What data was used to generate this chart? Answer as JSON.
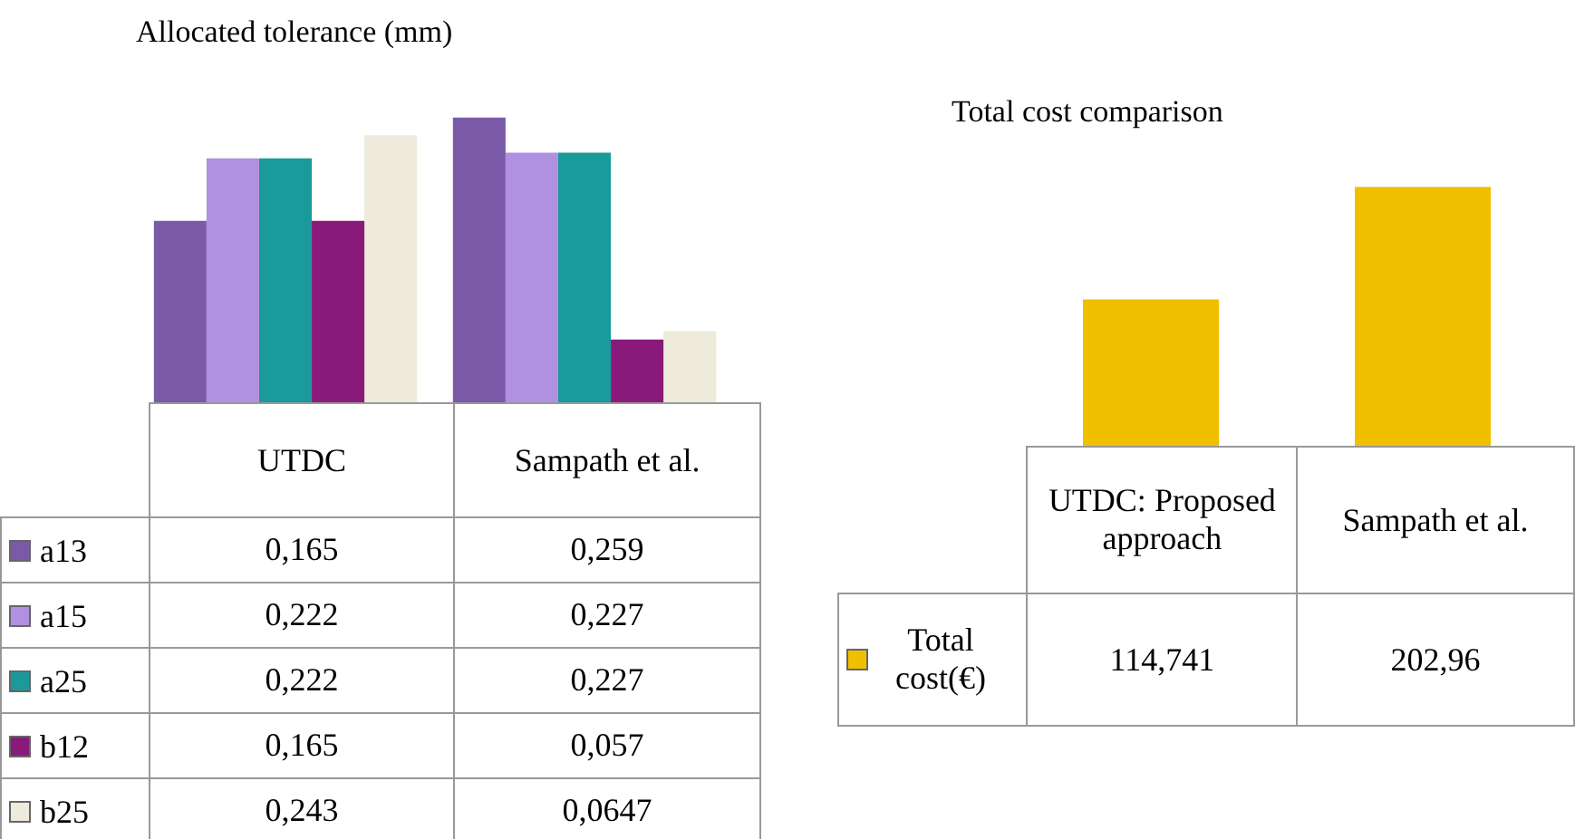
{
  "chart_data": [
    {
      "type": "bar",
      "title": "Allocated tolerance (mm)",
      "categories": [
        "UTDC",
        "Sampath et al."
      ],
      "legend": "bottom",
      "tick_labels": false,
      "series": [
        {
          "name": "a13",
          "color": "#7a5aa8",
          "values": [
            0.165,
            0.259
          ],
          "value_labels": [
            "0,165",
            "0,259"
          ]
        },
        {
          "name": "a15",
          "color": "#b090e0",
          "values": [
            0.222,
            0.227
          ],
          "value_labels": [
            "0,222",
            "0,227"
          ]
        },
        {
          "name": "a25",
          "color": "#1a9a9a",
          "values": [
            0.222,
            0.227
          ],
          "value_labels": [
            "0,222",
            "0,227"
          ]
        },
        {
          "name": "b12",
          "color": "#8a1a7a",
          "values": [
            0.165,
            0.057
          ],
          "value_labels": [
            "0,165",
            "0,057"
          ]
        },
        {
          "name": "b25",
          "color": "#eeeadc",
          "values": [
            0.243,
            0.0647
          ],
          "value_labels": [
            "0,243",
            "0,0647"
          ]
        }
      ]
    },
    {
      "type": "bar",
      "title": "Total cost comparison",
      "categories": [
        "UTDC: Proposed approach",
        "Sampath et al."
      ],
      "legend": "bottom",
      "tick_labels": false,
      "series": [
        {
          "name": "Total cost(€)",
          "color": "#f0c000",
          "values": [
            114.741,
            202.96
          ],
          "value_labels": [
            "114,741",
            "202,96"
          ]
        }
      ]
    }
  ]
}
